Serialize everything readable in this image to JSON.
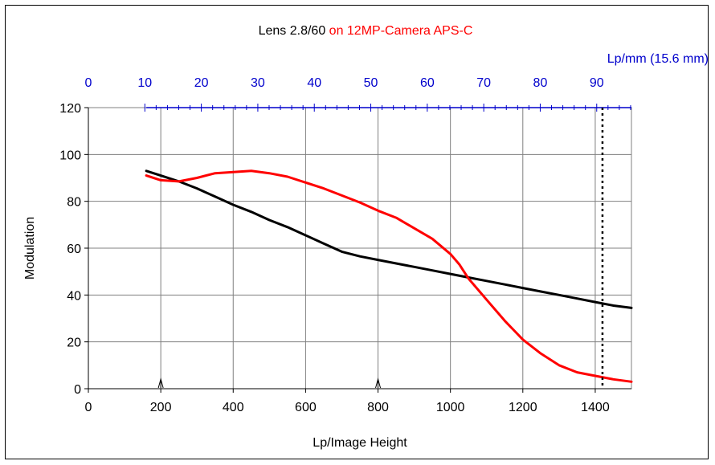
{
  "chart_data": {
    "type": "line",
    "title_lens": "Lens 2.8/60",
    "title_camera": " on 12MP-Camera APS-C",
    "xlabel": "Lp/Image Height",
    "ylabel": "Modulation",
    "x2label": "Lp/mm  (15.6 mm)",
    "xlim": [
      0,
      1500
    ],
    "ylim": [
      0,
      120
    ],
    "x_ticks": [
      0,
      200,
      400,
      600,
      800,
      1000,
      1200,
      1400
    ],
    "y_ticks": [
      0,
      20,
      40,
      60,
      80,
      100,
      120
    ],
    "x2_ticks": [
      0,
      10,
      20,
      30,
      40,
      50,
      60,
      70,
      80,
      90
    ],
    "x2_lpmm_per_lph": 0.0641,
    "grid": true,
    "nyquist_marker_x": 1420,
    "arrow_markers_x": [
      200,
      800
    ],
    "colors": {
      "camera": "#ff0000",
      "x2_axis": "#0000cc",
      "lens": "#000000"
    },
    "series": [
      {
        "color": "#000000",
        "x": [
          160,
          200,
          250,
          300,
          350,
          400,
          450,
          500,
          550,
          600,
          650,
          700,
          750,
          800,
          850,
          900,
          950,
          1000,
          1050,
          1100,
          1150,
          1200,
          1250,
          1300,
          1350,
          1400,
          1450,
          1500
        ],
        "values": [
          93,
          91,
          88.5,
          85.5,
          82,
          78.5,
          75.5,
          72,
          69,
          65.5,
          62,
          58.5,
          56.5,
          55,
          53.5,
          52,
          50.5,
          49,
          47.5,
          46,
          44.5,
          43,
          41.5,
          40,
          38.5,
          37,
          35.5,
          34.5
        ]
      },
      {
        "color": "#ff0000",
        "x": [
          160,
          200,
          250,
          300,
          350,
          400,
          450,
          500,
          550,
          600,
          650,
          700,
          750,
          800,
          850,
          900,
          950,
          1000,
          1025,
          1050,
          1100,
          1150,
          1200,
          1250,
          1300,
          1350,
          1400,
          1450,
          1500
        ],
        "values": [
          91,
          89,
          88.5,
          90,
          92,
          92.5,
          93,
          92,
          90.5,
          88,
          85.5,
          82.5,
          79.5,
          76,
          73,
          68.5,
          64,
          57.5,
          53,
          47,
          38,
          29,
          21,
          15,
          10,
          7,
          5.5,
          4,
          3
        ]
      }
    ]
  }
}
